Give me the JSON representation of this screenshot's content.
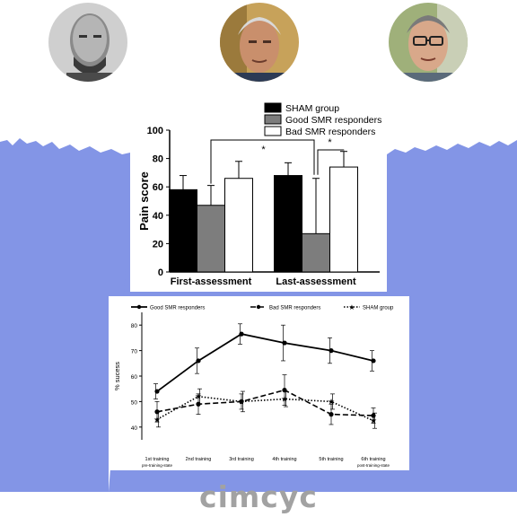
{
  "people": [
    {
      "name": "person-left",
      "icon": "portrait-bald-beard"
    },
    {
      "name": "person-center",
      "icon": "portrait-grey-hair"
    },
    {
      "name": "person-right",
      "icon": "portrait-glasses"
    }
  ],
  "brand": {
    "logo_text": "cimcyc"
  },
  "colors": {
    "band": "#8395e6",
    "page": "#ffffff",
    "logo": "#a2a2a2"
  },
  "chart_data": [
    {
      "type": "bar",
      "title": "",
      "categories": [
        "First-assessment",
        "Last-assessment"
      ],
      "xlabel": "",
      "ylabel": "Pain score",
      "ylim": [
        0,
        100
      ],
      "yticks": [
        "0",
        "20",
        "40",
        "60",
        "80",
        "100"
      ],
      "series": [
        {
          "name": "SHAM group",
          "color": "#000000",
          "values": [
            58,
            68
          ],
          "errors": [
            10,
            9
          ]
        },
        {
          "name": "Good SMR responders",
          "color": "#7d7d7d",
          "values": [
            47,
            27
          ],
          "errors": [
            14,
            39
          ]
        },
        {
          "name": "Bad SMR responders",
          "color": "#ffffff",
          "values": [
            66,
            74
          ],
          "errors": [
            12,
            11
          ]
        }
      ],
      "significance": [
        "*",
        "*"
      ],
      "legend": "top-right"
    },
    {
      "type": "line",
      "title": "",
      "categories": [
        "1st training",
        "2nd training",
        "3rd training",
        "4th training",
        "5th training",
        "6th training"
      ],
      "category_sublabels": [
        "pre-training-state",
        "",
        "",
        "",
        "",
        "post-training-state"
      ],
      "xlabel": "",
      "ylabel": "% sucess",
      "ylim": [
        35,
        85
      ],
      "yticks": [
        "40",
        "50",
        "60",
        "70",
        "80"
      ],
      "series": [
        {
          "name": "Good SMR responders",
          "style": "solid",
          "values": [
            54,
            66,
            76.5,
            73,
            70,
            66
          ],
          "errors": [
            3,
            5,
            4,
            7,
            5,
            4
          ]
        },
        {
          "name": "Bad SMR responders",
          "style": "dashed",
          "values": [
            46,
            49,
            50,
            54.5,
            45,
            44.5
          ],
          "errors": [
            4,
            4,
            3,
            6,
            4,
            3
          ]
        },
        {
          "name": "SHAM group",
          "style": "dotted",
          "values": [
            43,
            52,
            50,
            51,
            50,
            42.5
          ],
          "errors": [
            3,
            3,
            4,
            3,
            3,
            3
          ]
        }
      ],
      "legend": "top"
    }
  ]
}
